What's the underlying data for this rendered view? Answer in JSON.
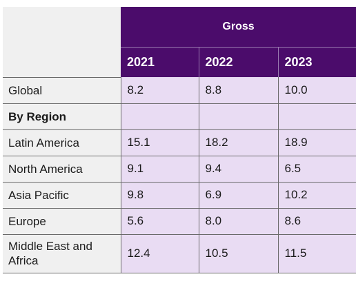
{
  "table": {
    "group_header": "Gross",
    "years": [
      "2021",
      "2022",
      "2023"
    ],
    "rows": [
      {
        "label": "Global",
        "values": [
          "8.2",
          "8.8",
          "10.0"
        ]
      },
      {
        "label": "By Region",
        "values": [
          "",
          "",
          ""
        ],
        "section": true
      },
      {
        "label": "Latin America",
        "values": [
          "15.1",
          "18.2",
          "18.9"
        ]
      },
      {
        "label": "North America",
        "values": [
          "9.1",
          "9.4",
          "6.5"
        ]
      },
      {
        "label": "Asia Pacific",
        "values": [
          "9.8",
          "6.9",
          "10.2"
        ]
      },
      {
        "label": "Europe",
        "values": [
          "5.6",
          "8.0",
          "8.6"
        ]
      },
      {
        "label": "Middle East and Africa",
        "values": [
          "12.4",
          "10.5",
          "11.5"
        ]
      }
    ]
  },
  "colors": {
    "header_bg": "#4b0c6b",
    "cell_bg": "#e9dcf3",
    "label_bg": "#f0f0f0"
  }
}
